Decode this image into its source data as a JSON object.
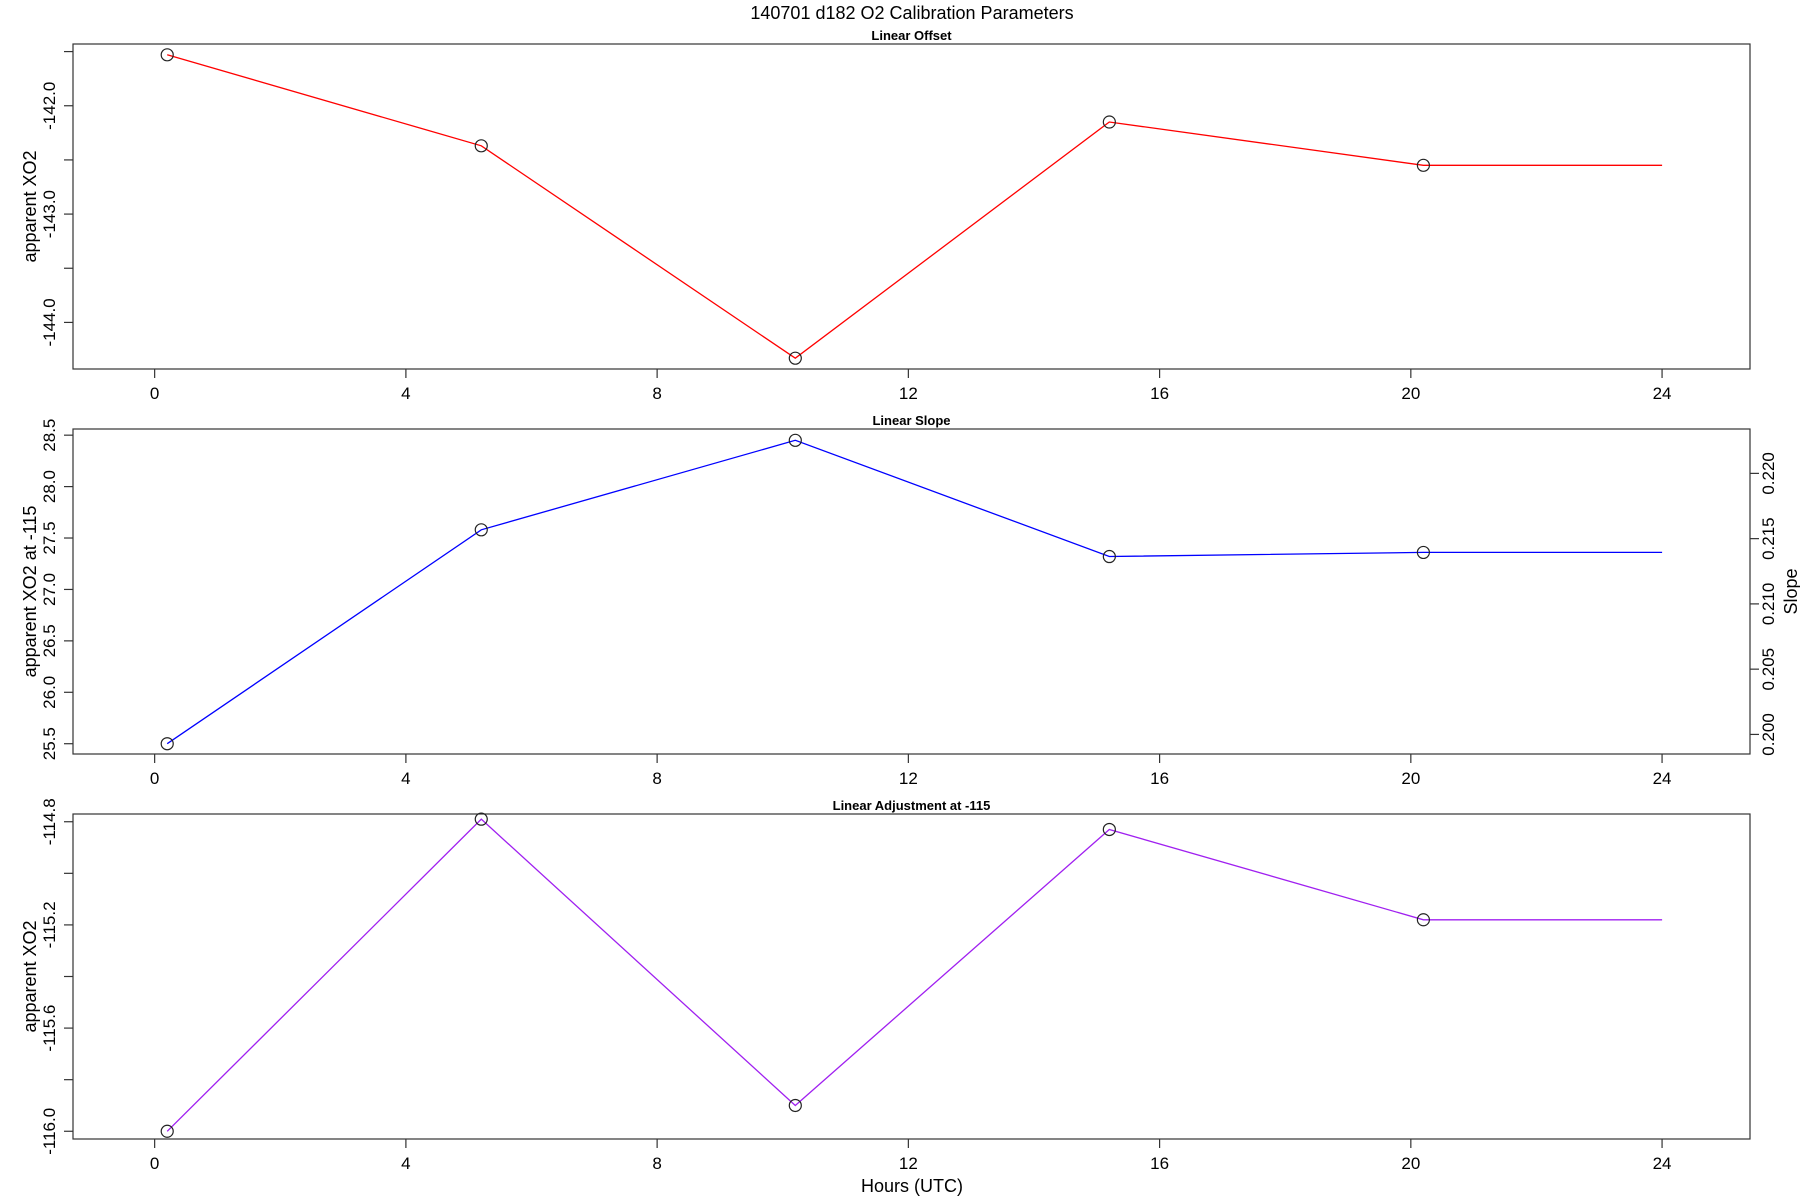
{
  "title": "140701   d182   O2 Calibration Parameters",
  "xlabel": "Hours (UTC)",
  "chart_data": [
    {
      "type": "line",
      "title": "Linear Offset",
      "xlabel": "",
      "ylabel": "apparent XO2",
      "xlim": [
        -1.3,
        25.4
      ],
      "ylim": [
        -144.43,
        -141.43
      ],
      "x_ticks": [
        "0",
        "4",
        "8",
        "12",
        "16",
        "20",
        "24"
      ],
      "y_ticks": [
        "-142.0",
        "-143.0",
        "-144.0"
      ],
      "y_minor_ticks": [
        -141.5,
        -142.5,
        -143.5
      ],
      "x": [
        0.2,
        5.2,
        10.2,
        15.2,
        20.2,
        24
      ],
      "y": [
        -141.53,
        -142.37,
        -144.33,
        -142.15,
        -142.55,
        -142.55
      ],
      "markers": [
        true,
        true,
        true,
        true,
        true,
        false
      ],
      "color": "#ff0000",
      "grid": false
    },
    {
      "type": "line",
      "title": "Linear Slope",
      "xlabel": "",
      "ylabel": "apparent XO2 at -115",
      "ylabel_right": "Slope",
      "xlim": [
        -1.3,
        25.4
      ],
      "ylim": [
        25.4,
        28.56
      ],
      "ylim_right": [
        0.1985,
        0.2234
      ],
      "x_ticks": [
        "0",
        "4",
        "8",
        "12",
        "16",
        "20",
        "24"
      ],
      "y_ticks": [
        "25.5",
        "26.0",
        "26.5",
        "27.0",
        "27.5",
        "28.0",
        "28.5"
      ],
      "y_ticks_right": [
        "0.200",
        "0.205",
        "0.210",
        "0.215",
        "0.220"
      ],
      "x": [
        0.2,
        5.2,
        10.2,
        15.2,
        20.2,
        24
      ],
      "y": [
        25.5,
        27.58,
        28.45,
        27.32,
        27.36,
        27.36
      ],
      "markers": [
        true,
        true,
        true,
        true,
        true,
        false
      ],
      "color": "#0000ff",
      "grid": false
    },
    {
      "type": "line",
      "title": "Linear Adjustment at -115",
      "xlabel": "Hours (UTC)",
      "ylabel": "apparent XO2",
      "xlim": [
        -1.3,
        25.4
      ],
      "ylim": [
        -116.03,
        -114.77
      ],
      "x_ticks": [
        "0",
        "4",
        "8",
        "12",
        "16",
        "20",
        "24"
      ],
      "y_ticks": [
        "-114.8",
        "-115.2",
        "-115.6",
        "-116.0"
      ],
      "y_minor_ticks": [
        -115.0,
        -115.4,
        -115.8
      ],
      "x": [
        0.2,
        5.2,
        10.2,
        15.2,
        20.2,
        24
      ],
      "y": [
        -116.0,
        -114.79,
        -115.9,
        -114.83,
        -115.18,
        -115.18
      ],
      "markers": [
        true,
        true,
        true,
        true,
        true,
        false
      ],
      "color": "#a020f0",
      "grid": false
    }
  ]
}
